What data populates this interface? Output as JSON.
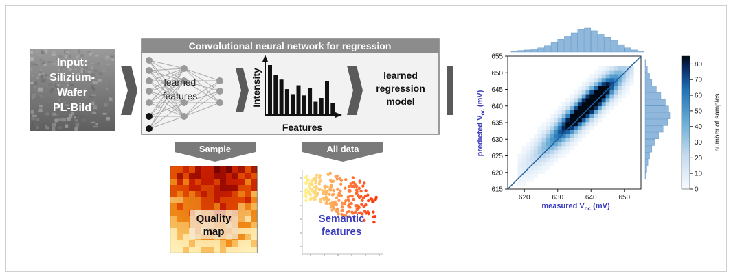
{
  "input": {
    "text": "Input:\nSilizium-\nWafer\nPL-Bild"
  },
  "cnn": {
    "title": "Convolutional neural network for regression",
    "learned_features": "learned features",
    "intensity_label": "Intensity",
    "features_label": "Features",
    "model_label": "learned regression model",
    "feature_bars": [
      0.78,
      0.62,
      0.55,
      0.4,
      0.32,
      0.46,
      0.3,
      0.42,
      0.2,
      0.26,
      0.52,
      0.18
    ]
  },
  "sample": {
    "label": "Sample",
    "map_text": "Quality map"
  },
  "all_data": {
    "label": "All data",
    "map_text": "Semantic features"
  },
  "plot": {
    "xlabel": "measured V",
    "xlabel_sub": "oc",
    "xlabel_unit": " (mV)",
    "ylabel": "predicted V",
    "ylabel_sub": "oc",
    "ylabel_unit": " (mV)",
    "colorbar_label": "number of samples",
    "xticks": [
      "620",
      "630",
      "640",
      "650"
    ],
    "yticks": [
      "615",
      "620",
      "625",
      "630",
      "635",
      "640",
      "645",
      "650",
      "655"
    ],
    "cbticks": [
      "0",
      "10",
      "20",
      "30",
      "40",
      "50",
      "60",
      "70",
      "80"
    ]
  },
  "colors": {
    "accent_blue": "#3b3bbd",
    "header_gray": "#8c8c8c",
    "arrow_gray": "#5a5a5a",
    "line_blue": "#1f5fa0"
  },
  "chart_data": {
    "type": "heatmap",
    "xlabel": "measured Voc (mV)",
    "ylabel": "predicted Voc (mV)",
    "xlim": [
      615,
      655
    ],
    "ylim": [
      615,
      655
    ],
    "colorbar": {
      "label": "number of samples",
      "range": [
        0,
        85
      ]
    },
    "diagonal_line": [
      [
        615,
        615
      ],
      [
        655,
        655
      ]
    ],
    "density_peak": {
      "x": 636,
      "y": 637,
      "count": 85
    },
    "x_marginal": {
      "bins": [
        612,
        614,
        616,
        618,
        620,
        622,
        624,
        626,
        628,
        630,
        632,
        634,
        636,
        638,
        640,
        642,
        644,
        646,
        648,
        650,
        652,
        654
      ],
      "counts": [
        1,
        1,
        2,
        3,
        4,
        6,
        8,
        12,
        18,
        24,
        30,
        36,
        42,
        45,
        40,
        34,
        28,
        22,
        14,
        8,
        4,
        2
      ]
    },
    "y_marginal": {
      "bins": [
        618,
        620,
        622,
        624,
        626,
        628,
        630,
        632,
        634,
        636,
        638,
        640,
        642,
        644,
        646,
        648,
        650,
        652
      ],
      "counts": [
        2,
        3,
        5,
        8,
        12,
        18,
        24,
        32,
        40,
        44,
        42,
        36,
        28,
        20,
        12,
        8,
        4,
        2
      ]
    }
  }
}
